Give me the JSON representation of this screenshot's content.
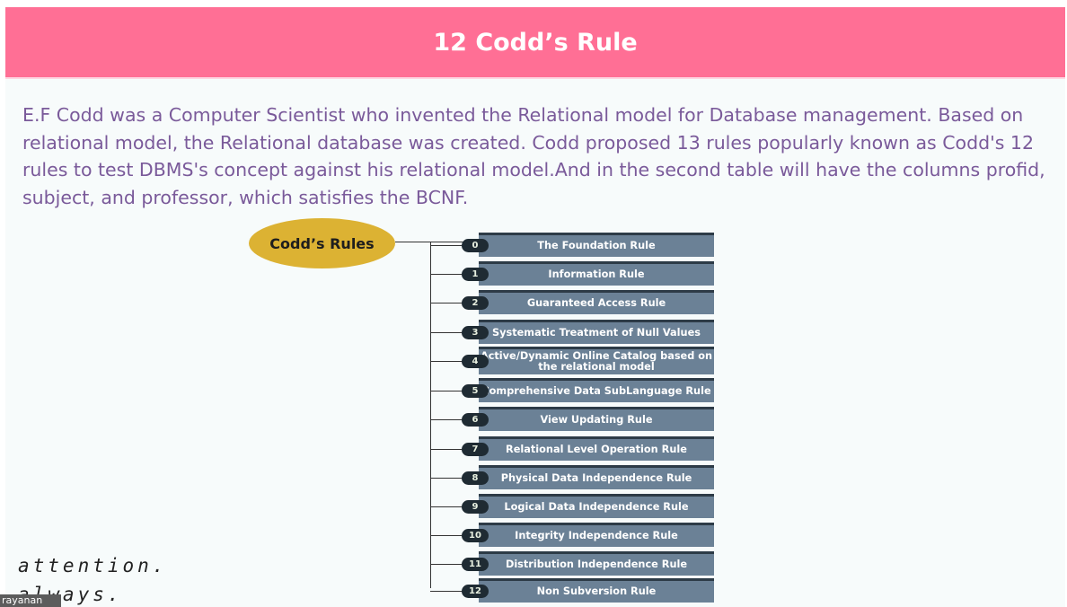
{
  "slide": {
    "title": "12 Codd’s Rule",
    "paragraph": "E.F Codd was a Computer Scientist who invented the Relational model for Database management. Based on relational model, the Relational database was created. Codd proposed 13 rules popularly known as Codd's 12 rules to test DBMS's concept against his relational model.And in the second table will have the columns profid, subject, and professor, which satisfies the BCNF."
  },
  "diagram": {
    "root_label": "Codd’s Rules",
    "rules": [
      {
        "num": "0",
        "label": "The Foundation Rule"
      },
      {
        "num": "1",
        "label": "Information Rule"
      },
      {
        "num": "2",
        "label": "Guaranteed Access Rule"
      },
      {
        "num": "3",
        "label": "Systematic Treatment of Null Values"
      },
      {
        "num": "4",
        "label": "Active/Dynamic Online Catalog based on the relational model"
      },
      {
        "num": "5",
        "label": "Comprehensive Data SubLanguage Rule"
      },
      {
        "num": "6",
        "label": "View Updating Rule"
      },
      {
        "num": "7",
        "label": "Relational Level Operation Rule"
      },
      {
        "num": "8",
        "label": "Physical Data Independence Rule"
      },
      {
        "num": "9",
        "label": "Logical Data Independence Rule"
      },
      {
        "num": "10",
        "label": "Integrity Independence Rule"
      },
      {
        "num": "11",
        "label": "Distribution Independence Rule"
      },
      {
        "num": "12",
        "label": "Non Subversion Rule"
      }
    ]
  },
  "overlay": {
    "line1": "attention.",
    "line2": "always.",
    "name_tag": "rayanan"
  }
}
